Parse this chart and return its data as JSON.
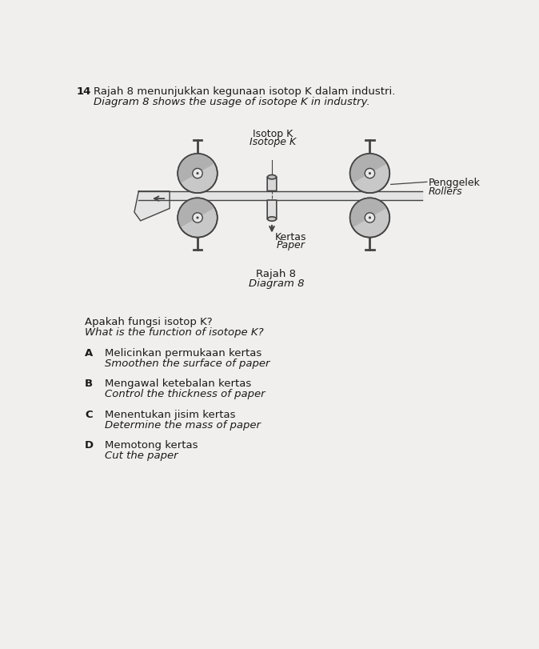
{
  "question_number": "14",
  "question_malay": "Rajah 8 menunjukkan kegunaan isotop K dalam industri.",
  "question_english": "Diagram 8 shows the usage of isotope K in industry.",
  "diagram_label_malay": "Rajah 8",
  "diagram_label_english": "Diagram 8",
  "label_isotop_malay": "Isotop K",
  "label_isotop_english": "Isotope K",
  "label_kertas_malay": "Kertas",
  "label_kertas_english": "Paper",
  "label_roller_malay": "Penggelek",
  "label_roller_english": "Rollers",
  "question2_malay": "Apakah fungsi isotop K?",
  "question2_english": "What is the function of isotope K?",
  "options": [
    {
      "letter": "A",
      "malay": "Melicinkan permukaan kertas",
      "english": "Smoothen the surface of paper"
    },
    {
      "letter": "B",
      "malay": "Mengawal ketebalan kertas",
      "english": "Control the thickness of paper"
    },
    {
      "letter": "C",
      "malay": "Menentukan jisim kertas",
      "english": "Determine the mass of paper"
    },
    {
      "letter": "D",
      "malay": "Memotong kertas",
      "english": "Cut the paper"
    }
  ],
  "bg_color": "#f0efed",
  "text_color": "#1a1a1a",
  "diagram_color": "#444444",
  "diagram_light": "#c8c8c8",
  "diagram_mid": "#b0b0b0"
}
